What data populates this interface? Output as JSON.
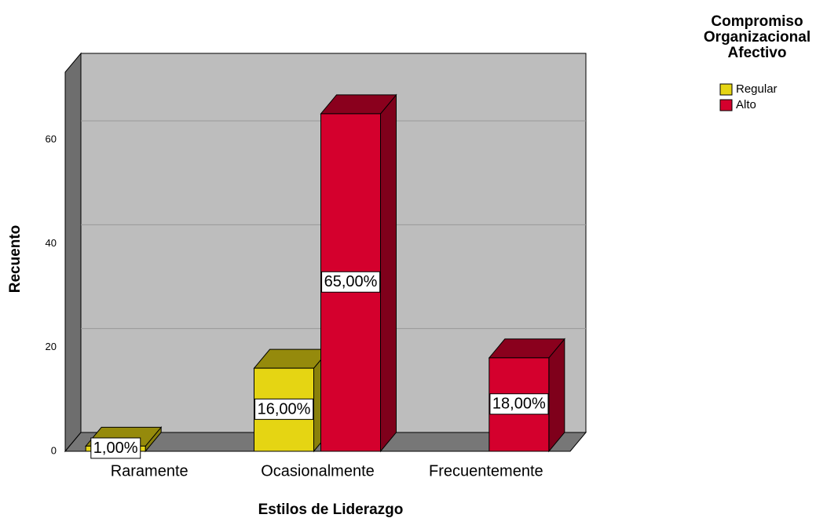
{
  "chart_data": {
    "type": "bar3d",
    "x_label": "Estilos de Liderazgo",
    "y_label": "Recuento",
    "legend_title": "Compromiso Organizacional Afectivo",
    "categories": [
      "Raramente",
      "Ocasionalmente",
      "Frecuentemente"
    ],
    "series": [
      {
        "name": "Regular",
        "color": "#e5d513",
        "values": [
          1,
          16,
          null
        ],
        "value_labels": [
          "1,00%",
          "16,00%",
          null
        ]
      },
      {
        "name": "Alto",
        "color": "#d4002d",
        "values": [
          null,
          65,
          18
        ],
        "value_labels": [
          null,
          "65,00%",
          "18,00%"
        ]
      }
    ],
    "ylim": [
      0,
      73
    ],
    "yticks": [
      0,
      20,
      40,
      60
    ],
    "grid": true,
    "legend": "top-right"
  }
}
